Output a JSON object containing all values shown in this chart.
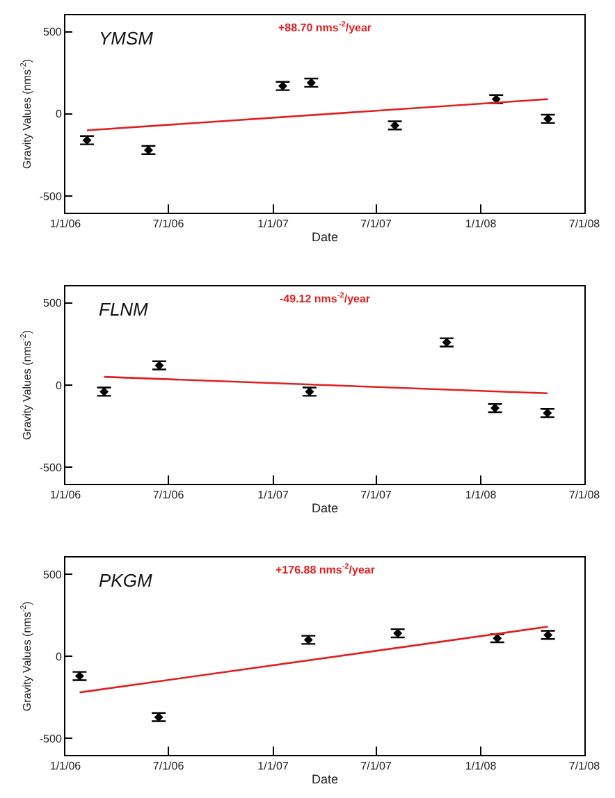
{
  "chart_data": [
    {
      "type": "scatter",
      "xlabel": "Date",
      "ylabel": "Gravity Values (nms$^{-2}$)",
      "annotations": [
        "YMSM",
        "+88.70 nms$^{-2}$/year"
      ],
      "xlim": [
        "2006-01-01",
        "2008-07-01"
      ],
      "xticks": [
        {
          "value": "2006-01-01",
          "label": "1/1/06"
        },
        {
          "value": "2006-07-01",
          "label": "7/1/06"
        },
        {
          "value": "2007-01-01",
          "label": "1/1/07"
        },
        {
          "value": "2007-07-01",
          "label": "7/1/07"
        },
        {
          "value": "2008-01-01",
          "label": "1/1/08"
        },
        {
          "value": "2008-07-01",
          "label": "7/1/08"
        }
      ],
      "ylim": [
        -600,
        600
      ],
      "yticks": [
        -500,
        0,
        500
      ],
      "grid": false,
      "series": [
        {
          "color": "#000000",
          "marker": "diamond",
          "x": [
            "2006-02-08",
            "2006-05-27",
            "2007-01-18",
            "2007-03-09",
            "2007-08-03",
            "2008-01-28",
            "2008-04-28"
          ],
          "values": [
            -160,
            -220,
            170,
            190,
            -70,
            90,
            -30
          ],
          "errors": [
            25,
            25,
            25,
            25,
            25,
            25,
            25
          ]
        },
        {
          "type": "line",
          "color": "#e02020",
          "line_style": "solid",
          "x": [
            "2006-02-08",
            "2008-04-28"
          ],
          "values": [
            -100,
            90
          ]
        }
      ]
    },
    {
      "type": "scatter",
      "xlabel": "Date",
      "ylabel": "Gravity Values (nms$^{-2}$)",
      "annotations": [
        "FLNM",
        "-49.12 nms$^{-2}$/year"
      ],
      "xlim": [
        "2006-01-01",
        "2008-07-01"
      ],
      "xticks": [
        {
          "value": "2006-01-01",
          "label": "1/1/06"
        },
        {
          "value": "2006-07-01",
          "label": "7/1/06"
        },
        {
          "value": "2007-01-01",
          "label": "1/1/07"
        },
        {
          "value": "2007-07-01",
          "label": "7/1/07"
        },
        {
          "value": "2008-01-01",
          "label": "1/1/08"
        },
        {
          "value": "2008-07-01",
          "label": "7/1/08"
        }
      ],
      "ylim": [
        -600,
        600
      ],
      "yticks": [
        -500,
        0,
        500
      ],
      "grid": false,
      "series": [
        {
          "color": "#000000",
          "marker": "diamond",
          "x": [
            "2006-03-10",
            "2006-06-15",
            "2007-03-06",
            "2007-11-02",
            "2008-01-26",
            "2008-04-27"
          ],
          "values": [
            -40,
            120,
            -40,
            260,
            -140,
            -170
          ],
          "errors": [
            25,
            25,
            25,
            25,
            25,
            25
          ]
        },
        {
          "type": "line",
          "color": "#e02020",
          "line_style": "solid",
          "x": [
            "2006-03-10",
            "2008-04-27"
          ],
          "values": [
            50,
            -50
          ]
        }
      ]
    },
    {
      "type": "scatter",
      "xlabel": "Date",
      "ylabel": "Gravity Values (nms$^{-2}$)",
      "annotations": [
        "PKGM",
        "+176.88 nms$^{-2}$/year"
      ],
      "xlim": [
        "2006-01-01",
        "2008-07-01"
      ],
      "xticks": [
        {
          "value": "2006-01-01",
          "label": "1/1/06"
        },
        {
          "value": "2006-07-01",
          "label": "7/1/06"
        },
        {
          "value": "2007-01-01",
          "label": "1/1/07"
        },
        {
          "value": "2007-07-01",
          "label": "7/1/07"
        },
        {
          "value": "2008-01-01",
          "label": "1/1/08"
        },
        {
          "value": "2008-07-01",
          "label": "7/1/08"
        }
      ],
      "ylim": [
        -600,
        600
      ],
      "yticks": [
        -500,
        0,
        500
      ],
      "grid": false,
      "series": [
        {
          "color": "#000000",
          "marker": "diamond",
          "x": [
            "2006-01-26",
            "2006-06-14",
            "2007-03-04",
            "2007-08-08",
            "2008-01-30",
            "2008-04-28"
          ],
          "values": [
            -120,
            -370,
            100,
            140,
            110,
            130
          ],
          "errors": [
            25,
            25,
            25,
            25,
            25,
            25
          ]
        },
        {
          "type": "line",
          "color": "#e02020",
          "line_style": "solid",
          "x": [
            "2006-01-26",
            "2008-04-28"
          ],
          "values": [
            -220,
            180
          ]
        }
      ]
    }
  ]
}
